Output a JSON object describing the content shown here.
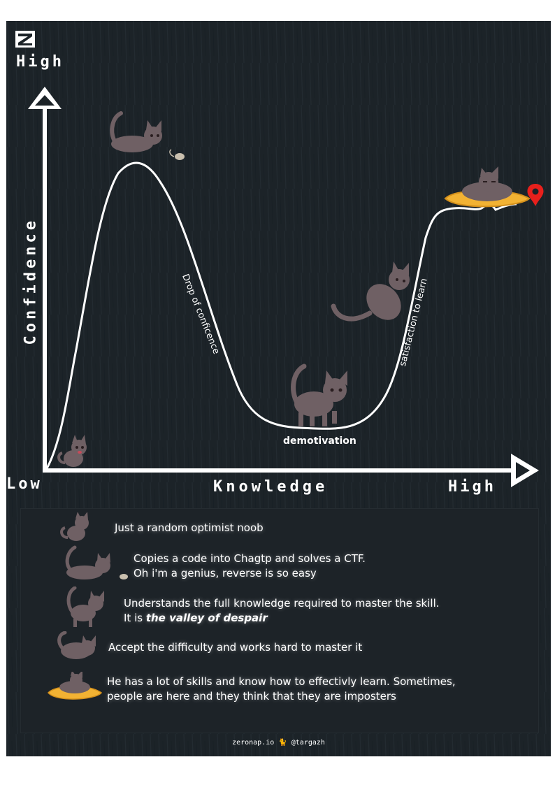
{
  "axes": {
    "y_label": "Confidence",
    "y_high": "High",
    "x_label": "Knowledge",
    "x_low": "Low",
    "x_high": "High"
  },
  "curve_labels": {
    "drop": "Drop of conficence",
    "valley": "demotivation",
    "climb": "satisfaction to learn"
  },
  "legend": {
    "items": [
      {
        "line1": "Just a random optimist noob",
        "line2": "",
        "line2_prefix": "",
        "line2_emph": "",
        "icon": "sitting-cat-icon"
      },
      {
        "line1": "Copies a code into Chagtp and solves a CTF.",
        "line2": "Oh i'm a genius, reverse is so easy",
        "line2_prefix": "",
        "line2_emph": "",
        "icon": "pouncing-cat-icon"
      },
      {
        "line1": "Understands the full knowledge required to master the skill.",
        "line2": "",
        "line2_prefix": "It is ",
        "line2_emph": "the valley of despair",
        "icon": "walking-cat-icon"
      },
      {
        "line1": "Accept the difficulty and works hard to master it",
        "line2": "",
        "line2_prefix": "",
        "line2_emph": "",
        "icon": "climbing-cat-icon"
      },
      {
        "line1": "He has a lot of skills and know how to effectivly learn. Sometimes,",
        "line2": "people are here and they think that they are imposters",
        "line2_prefix": "",
        "line2_emph": "",
        "icon": "cushion-cat-icon"
      }
    ]
  },
  "footer": "zeronap.io 🐈 @targazh",
  "colors": {
    "background": "#1c2328",
    "line": "#ffffff",
    "cat_fur": "#6f6064",
    "cushion": "#f2b233",
    "pin": "#e8201c"
  }
}
